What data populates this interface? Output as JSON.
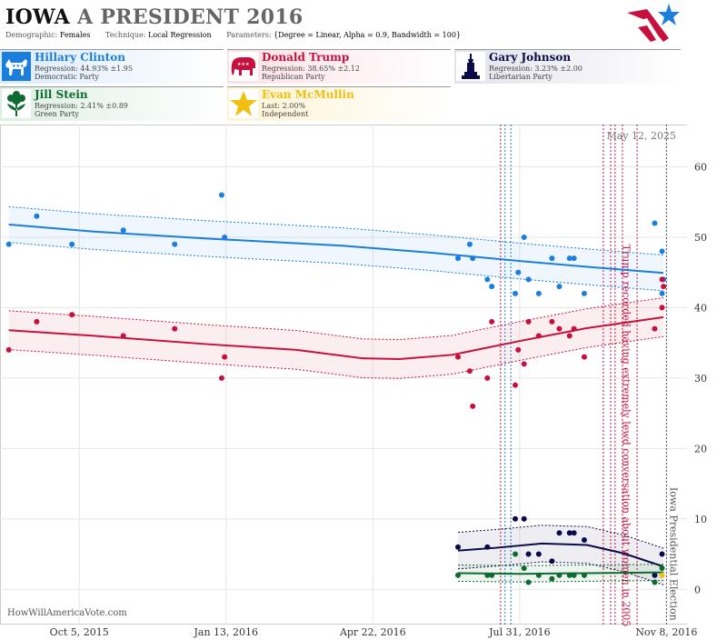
{
  "header": {
    "state": "IOWA",
    "race": "A PRESIDENT 2016",
    "demographic_label": "Demographic:",
    "demographic": "Females",
    "technique_label": "Technique:",
    "technique": "Local Regression",
    "parameters_label": "Parameters:",
    "parameters": "{Degree = Linear, Alpha = 0.9, Bandwidth = 100}"
  },
  "candidates": [
    {
      "name": "Hillary Clinton",
      "line2": "Regression: 44.93% ±1.95",
      "line3": "Democratic Party",
      "color": "#1a7fdc",
      "icon": "donkey-icon"
    },
    {
      "name": "Donald Trump",
      "line2": "Regression: 38.65% ±2.12",
      "line3": "Republican Party",
      "color": "#c8103e",
      "icon": "elephant-icon"
    },
    {
      "name": "Gary Johnson",
      "line2": "Regression: 3.23% ±2.00",
      "line3": "Libertarian Party",
      "color": "#0b0b4a",
      "icon": "statue-of-liberty-icon"
    },
    {
      "name": "Jill Stein",
      "line2": "Regression: 2.41% ±0.89",
      "line3": "Green Party",
      "color": "#0e6b30",
      "icon": "flower-icon"
    },
    {
      "name": "Evan McMullin",
      "line2": "Last: 2.00%",
      "line3": "Independent",
      "color": "#f0c010",
      "icon": "star-icon"
    }
  ],
  "source": "HowWillAmericaVote.com",
  "chart_data": {
    "type": "scatter",
    "date_label": "May 12, 2025",
    "x_ticks": [
      "Oct 5, 2015",
      "Jan 13, 2016",
      "Apr 22, 2016",
      "Jul 31, 2016",
      "Nov 8, 2016"
    ],
    "x_range": [
      "2015-08-12",
      "2016-11-22"
    ],
    "ylim": [
      -5,
      66
    ],
    "y_ticks": [
      0,
      10,
      20,
      30,
      40,
      50,
      60
    ],
    "annotations": [
      {
        "text": "Trump recorded having extremely lewd conversation about women in 2005",
        "date": "2016-10-07",
        "color": "#c8103e"
      },
      {
        "text": "Iowa Presidential Election",
        "date": "2016-11-08",
        "color": "#555555"
      }
    ],
    "event_lines": [
      {
        "date": "2016-07-18",
        "color": "#c8103e"
      },
      {
        "date": "2016-07-21",
        "color": "#1a7fdc"
      },
      {
        "date": "2016-07-25",
        "color": "#1a7fdc"
      },
      {
        "date": "2016-09-26",
        "color": "#c8103e"
      },
      {
        "date": "2016-10-01",
        "color": "#c8103e"
      },
      {
        "date": "2016-10-04",
        "color": "#c8103e"
      },
      {
        "date": "2016-10-09",
        "color": "#c8103e"
      },
      {
        "date": "2016-10-19",
        "color": "#c8103e"
      },
      {
        "date": "2016-11-08",
        "color": "#555555"
      }
    ],
    "series": [
      {
        "name": "Hillary Clinton",
        "color": "#1a7fdc",
        "points": [
          [
            "2015-08-18",
            49
          ],
          [
            "2015-09-06",
            53
          ],
          [
            "2015-09-30",
            49
          ],
          [
            "2015-11-04",
            51
          ],
          [
            "2015-12-09",
            49
          ],
          [
            "2016-01-10",
            56
          ],
          [
            "2016-01-12",
            50
          ],
          [
            "2016-06-19",
            47
          ],
          [
            "2016-06-27",
            49
          ],
          [
            "2016-06-29",
            47
          ],
          [
            "2016-07-09",
            44
          ],
          [
            "2016-07-12",
            43
          ],
          [
            "2016-07-28",
            42
          ],
          [
            "2016-07-30",
            45
          ],
          [
            "2016-08-03",
            50
          ],
          [
            "2016-08-06",
            44
          ],
          [
            "2016-08-13",
            42
          ],
          [
            "2016-08-22",
            47
          ],
          [
            "2016-08-27",
            43
          ],
          [
            "2016-09-03",
            47
          ],
          [
            "2016-09-06",
            47
          ],
          [
            "2016-09-13",
            42
          ],
          [
            "2016-10-31",
            52
          ],
          [
            "2016-11-05",
            48
          ],
          [
            "2016-11-05",
            42
          ],
          [
            "2016-11-06",
            44
          ]
        ],
        "trend": [
          [
            "2015-08-18",
            51.8
          ],
          [
            "2015-10-15",
            50.8
          ],
          [
            "2016-01-01",
            49.8
          ],
          [
            "2016-04-01",
            48.8
          ],
          [
            "2016-06-01",
            47.8
          ],
          [
            "2016-08-01",
            46.6
          ],
          [
            "2016-09-15",
            45.8
          ],
          [
            "2016-11-06",
            44.93
          ]
        ],
        "band": 1.95
      },
      {
        "name": "Donald Trump",
        "color": "#c8103e",
        "points": [
          [
            "2015-08-18",
            34
          ],
          [
            "2015-09-06",
            38
          ],
          [
            "2015-09-30",
            39
          ],
          [
            "2015-11-04",
            36
          ],
          [
            "2015-12-09",
            37
          ],
          [
            "2016-01-10",
            30
          ],
          [
            "2016-01-12",
            33
          ],
          [
            "2016-06-19",
            33
          ],
          [
            "2016-06-27",
            31
          ],
          [
            "2016-06-29",
            26
          ],
          [
            "2016-07-09",
            30
          ],
          [
            "2016-07-12",
            38
          ],
          [
            "2016-07-28",
            29
          ],
          [
            "2016-07-30",
            34
          ],
          [
            "2016-08-03",
            32
          ],
          [
            "2016-08-06",
            38
          ],
          [
            "2016-08-13",
            36
          ],
          [
            "2016-08-22",
            38
          ],
          [
            "2016-08-27",
            37
          ],
          [
            "2016-09-03",
            36
          ],
          [
            "2016-09-06",
            37
          ],
          [
            "2016-09-13",
            33
          ],
          [
            "2016-10-31",
            37
          ],
          [
            "2016-11-05",
            44
          ],
          [
            "2016-11-05",
            40
          ],
          [
            "2016-11-06",
            43
          ]
        ],
        "trend": [
          [
            "2015-08-18",
            36.8
          ],
          [
            "2015-10-15",
            36
          ],
          [
            "2016-01-01",
            34.8
          ],
          [
            "2016-03-01",
            34
          ],
          [
            "2016-04-15",
            32.8
          ],
          [
            "2016-05-10",
            32.7
          ],
          [
            "2016-06-15",
            33.3
          ],
          [
            "2016-08-01",
            35.3
          ],
          [
            "2016-09-15",
            37.1
          ],
          [
            "2016-11-06",
            38.65
          ]
        ],
        "band": 2.12
      },
      {
        "name": "Gary Johnson",
        "color": "#0b0b4a",
        "points": [
          [
            "2016-06-19",
            6
          ],
          [
            "2016-07-09",
            6
          ],
          [
            "2016-07-28",
            10
          ],
          [
            "2016-08-03",
            10
          ],
          [
            "2016-08-06",
            5
          ],
          [
            "2016-08-13",
            5
          ],
          [
            "2016-08-22",
            4
          ],
          [
            "2016-08-27",
            8
          ],
          [
            "2016-09-03",
            8
          ],
          [
            "2016-09-06",
            8
          ],
          [
            "2016-09-13",
            7
          ],
          [
            "2016-10-31",
            2
          ],
          [
            "2016-11-05",
            5
          ]
        ],
        "trend": [
          [
            "2016-06-19",
            5.5
          ],
          [
            "2016-07-15",
            5.9
          ],
          [
            "2016-08-15",
            6.5
          ],
          [
            "2016-09-15",
            6.3
          ],
          [
            "2016-10-10",
            5.1
          ],
          [
            "2016-11-06",
            3.23
          ]
        ],
        "band": 2.0
      },
      {
        "name": "Jill Stein",
        "color": "#0e6b30",
        "points": [
          [
            "2016-06-19",
            2
          ],
          [
            "2016-07-09",
            2
          ],
          [
            "2016-07-12",
            2
          ],
          [
            "2016-07-28",
            5
          ],
          [
            "2016-08-03",
            3
          ],
          [
            "2016-08-06",
            1
          ],
          [
            "2016-08-13",
            2
          ],
          [
            "2016-08-22",
            1.5
          ],
          [
            "2016-08-27",
            2
          ],
          [
            "2016-09-03",
            2
          ],
          [
            "2016-09-06",
            2
          ],
          [
            "2016-09-13",
            2
          ],
          [
            "2016-10-31",
            1
          ],
          [
            "2016-11-05",
            3
          ]
        ],
        "trend": [
          [
            "2016-06-19",
            2.3
          ],
          [
            "2016-08-01",
            2.2
          ],
          [
            "2016-09-15",
            2.3
          ],
          [
            "2016-11-06",
            2.41
          ]
        ],
        "band": 0.89
      },
      {
        "name": "Evan McMullin",
        "color": "#f0c010",
        "points": [
          [
            "2016-11-05",
            2
          ]
        ],
        "trend": [],
        "band": 0
      }
    ]
  }
}
